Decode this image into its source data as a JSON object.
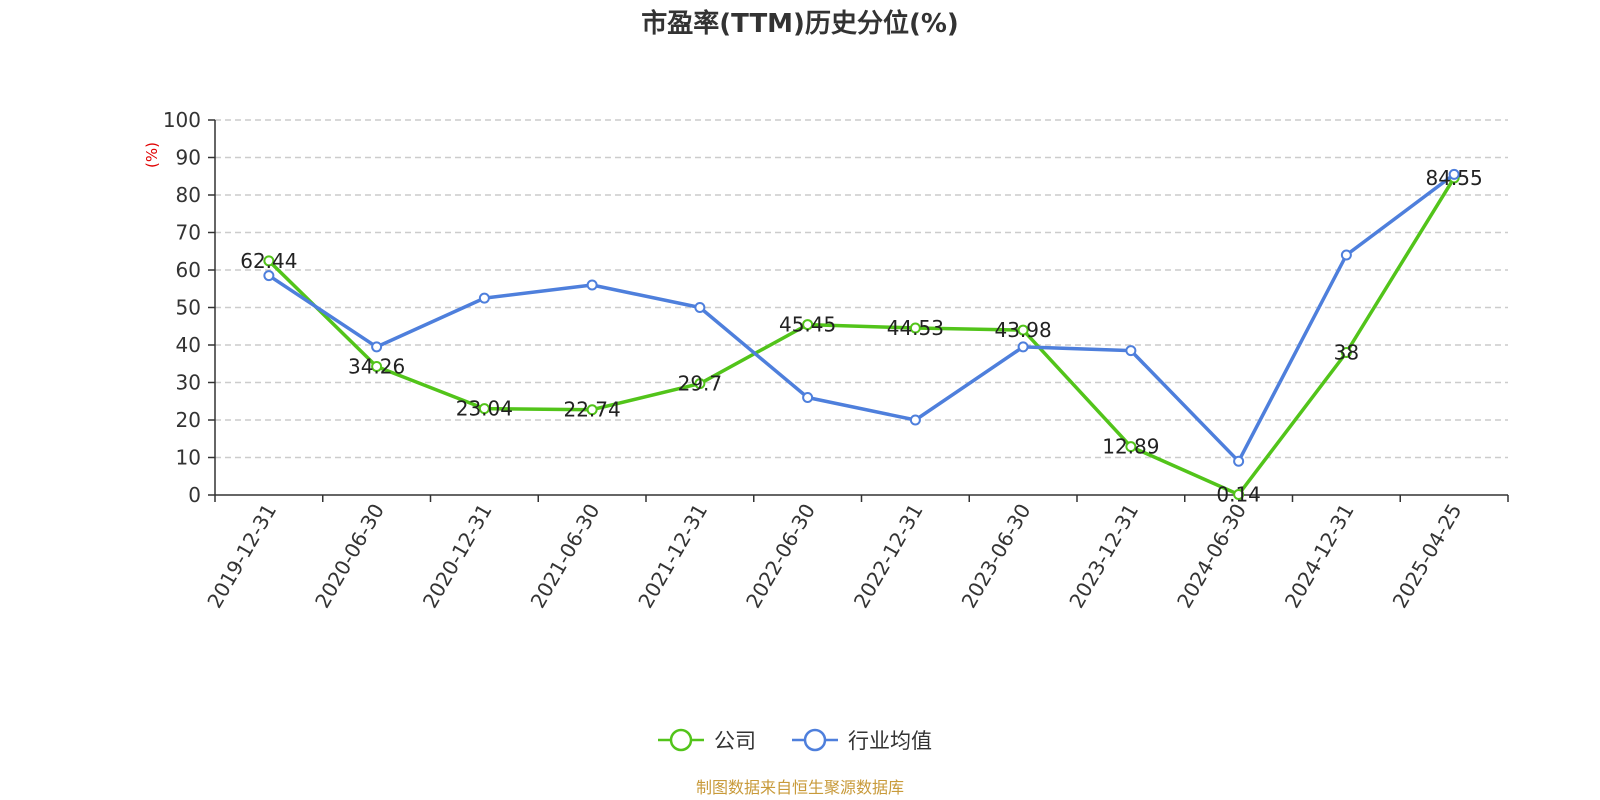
{
  "chart_data": {
    "type": "line",
    "title": "市盈率(TTM)历史分位(%)",
    "ylabel": "(%)",
    "ylim": [
      0,
      100
    ],
    "yticks": [
      0,
      10,
      20,
      30,
      40,
      50,
      60,
      70,
      80,
      90,
      100
    ],
    "grid": true,
    "legend_position": "bottom",
    "categories": [
      "2019-12-31",
      "2020-06-30",
      "2020-12-31",
      "2021-06-30",
      "2021-12-31",
      "2022-06-30",
      "2022-12-31",
      "2023-06-30",
      "2023-12-31",
      "2024-06-30",
      "2024-12-31",
      "2025-04-25"
    ],
    "series": [
      {
        "name": "公司",
        "color": "#52c41a",
        "values": [
          62.44,
          34.26,
          23.04,
          22.74,
          29.7,
          45.45,
          44.53,
          43.98,
          12.89,
          0.14,
          38,
          84.55
        ],
        "labels": [
          "62.44",
          "34.26",
          "23.04",
          "22.74",
          "29.7",
          "45.45",
          "44.53",
          "43.98",
          "12.89",
          "0.14",
          "38",
          "84.55"
        ]
      },
      {
        "name": "行业均值",
        "color": "#4e7fdc",
        "values": [
          58.5,
          39.5,
          52.5,
          56,
          50,
          26,
          20,
          39.5,
          38.5,
          9,
          64,
          85.5
        ]
      }
    ],
    "source": "制图数据来自恒生聚源数据库",
    "colors": {
      "ylabel": "#e00000",
      "source": "#c89a3a",
      "axis": "#333333",
      "grid": "#cccccc"
    }
  }
}
